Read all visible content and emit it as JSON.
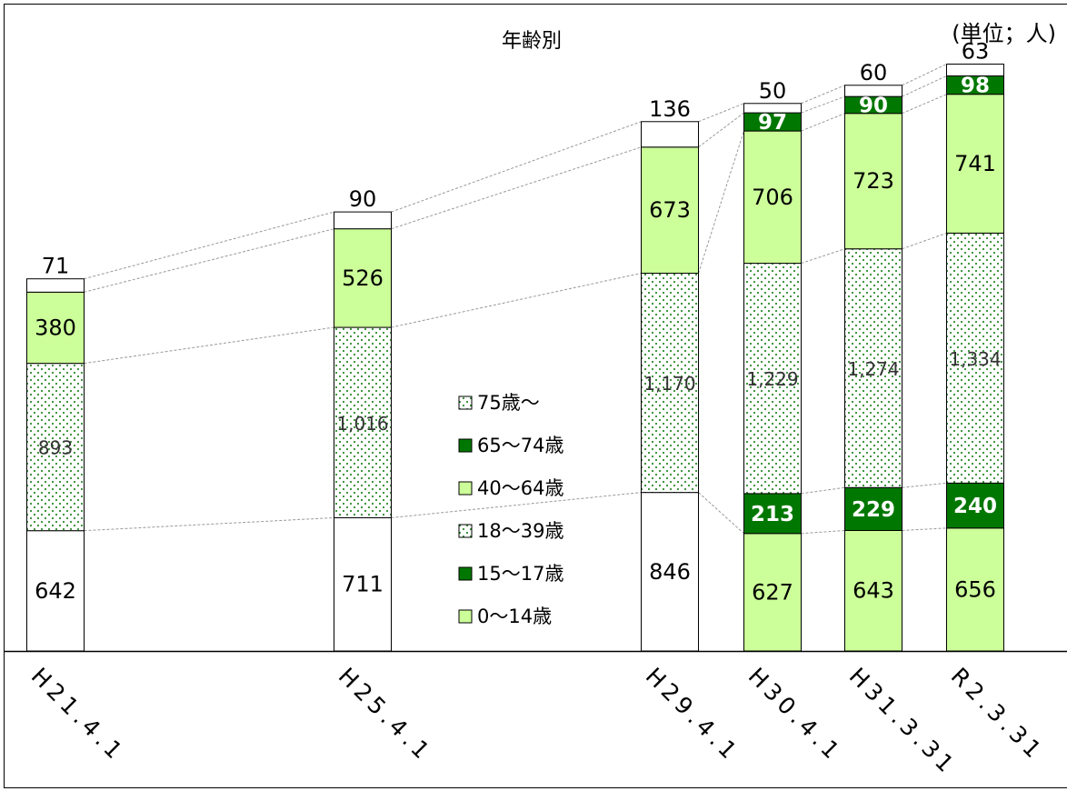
{
  "chart_data": {
    "type": "bar",
    "stacked": true,
    "title": "年齢別",
    "unit": "(単位；人)",
    "categories": [
      "H21.4.1",
      "H25.4.1",
      "H29.4.1",
      "H30.4.1",
      "H31.3.31",
      "R2.3.31"
    ],
    "legend": [
      "75歳～",
      "65～74歳",
      "40～64歳",
      "18～39歳",
      "15～17歳",
      "0～14歳"
    ],
    "legend_position": "inside-center",
    "series": [
      {
        "name": "0～14歳",
        "values": [
          null,
          null,
          null,
          627,
          643,
          656
        ],
        "labels": [
          "",
          "",
          "",
          "627",
          "643",
          "656"
        ]
      },
      {
        "name": "15～17歳",
        "values": [
          null,
          null,
          null,
          213,
          229,
          240
        ],
        "labels": [
          "",
          "",
          "",
          "213",
          "229",
          "240"
        ]
      },
      {
        "name": "18～39歳",
        "values": [
          642,
          711,
          846,
          1229,
          1274,
          1334
        ],
        "labels": [
          "642",
          "711",
          "846",
          "1,229",
          "1,274",
          "1,334"
        ]
      },
      {
        "name": "40～64歳",
        "values": [
          893,
          1016,
          1170,
          706,
          723,
          741
        ],
        "labels": [
          "893",
          "1,016",
          "1,170",
          "706",
          "723",
          "741"
        ]
      },
      {
        "name": "65～74歳",
        "values": [
          380,
          526,
          673,
          97,
          90,
          98
        ],
        "labels": [
          "380",
          "526",
          "673",
          "97",
          "90",
          "98"
        ]
      },
      {
        "name": "75歳～",
        "values": [
          71,
          90,
          136,
          50,
          60,
          63
        ],
        "labels": [
          "71",
          "90",
          "136",
          "50",
          "60",
          "63"
        ]
      }
    ],
    "colors": {
      "green_light": "#ccff99",
      "green_dark": "#007700",
      "dots": "#2e8b2e",
      "white": "#ffffff",
      "border": "#000000",
      "connector": "#999999"
    },
    "grid": false
  }
}
